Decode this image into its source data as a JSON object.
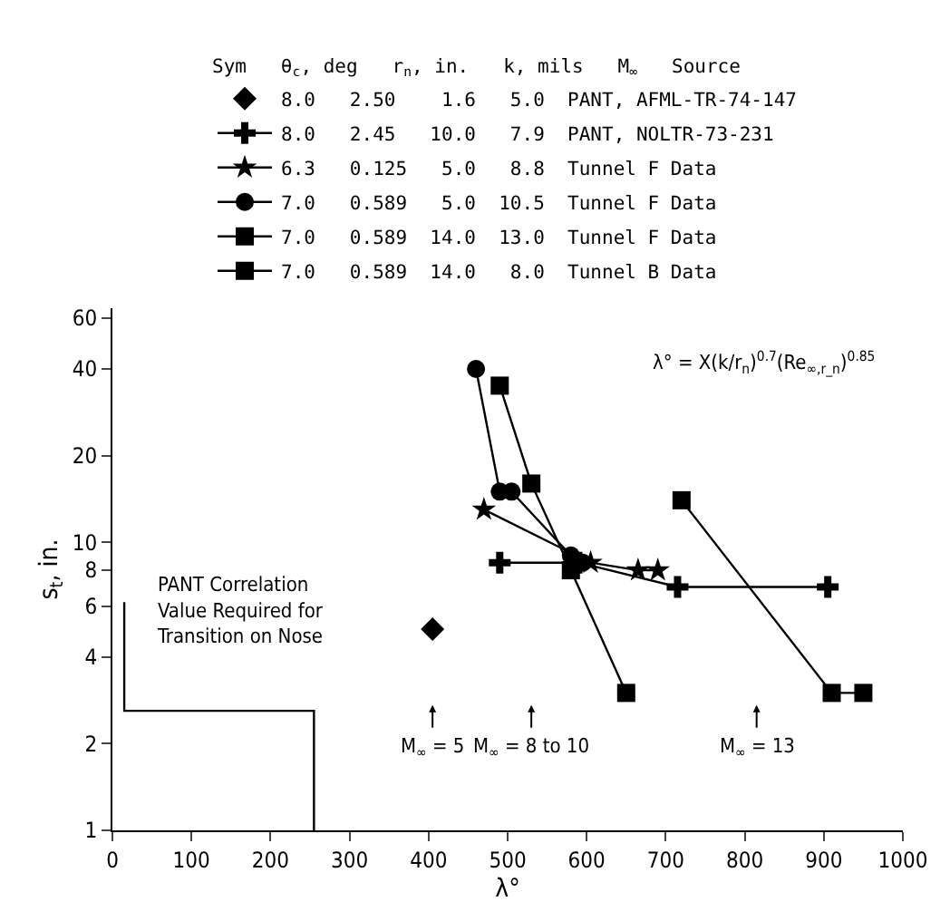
{
  "chart_data": {
    "type": "scatter",
    "xlabel": "λ°",
    "ylabel": "s$_{t}$, in.",
    "legend_title": "Sym   θ$_{c}$, deg   r$_{n}$, in.   k, mils   M$_{∞}$   Source",
    "series": [
      {
        "name": "8.0   2.50    1.6   5.0  PANT, AFML-TR-74-147",
        "color": "#000000",
        "marker": "diamond",
        "x": [
          405
        ],
        "values": [
          5
        ]
      },
      {
        "name": "8.0   2.45   10.0   7.9  PANT, NOLTR-73-231",
        "color": "#000000",
        "marker": "cross",
        "type": "line",
        "x": [
          490,
          590,
          715,
          905
        ],
        "values": [
          8.5,
          8.5,
          7,
          7
        ]
      },
      {
        "name": "6.3   0.125   5.0   8.8  Tunnel F Data",
        "color": "#000000",
        "marker": "star",
        "type": "line",
        "x": [
          470,
          605,
          665,
          690
        ],
        "values": [
          13,
          8.5,
          8,
          8
        ]
      },
      {
        "name": "7.0   0.589   5.0  10.5  Tunnel F Data",
        "color": "#000000",
        "marker": "circle",
        "type": "line",
        "x": [
          460,
          490,
          505,
          580,
          595
        ],
        "values": [
          40,
          15,
          15,
          9,
          8.5
        ]
      },
      {
        "name": "7.0   0.589  14.0  13.0  Tunnel F Data",
        "color": "#000000",
        "marker": "square",
        "type": "line",
        "x": [
          720,
          910,
          950
        ],
        "values": [
          14,
          3,
          3
        ]
      },
      {
        "name": "7.0   0.589  14.0   8.0  Tunnel B Data",
        "color": "#000000",
        "marker": "square",
        "type": "line",
        "x": [
          490,
          530,
          580,
          650
        ],
        "values": [
          35,
          16,
          8,
          3
        ]
      },
      {
        "color": "#000000",
        "marker": "none",
        "type": "line",
        "x": [
          15,
          15,
          255,
          255
        ],
        "values": [
          6.2,
          2.6,
          2.6,
          1
        ]
      }
    ],
    "annotations": [
      "λ° = X(k/r$_{n}$)$^{0.7}$(Re$_{∞,r_n}$)$^{0.85}$",
      "PANT Correlation Value Required for Transition on Nose",
      "M$_{∞}$ = 5",
      "M$_{∞}$ = 8 to 10",
      "M$_{∞}$ = 13"
    ],
    "xlim": [
      0,
      1000
    ],
    "xticks": [
      0,
      100,
      200,
      300,
      400,
      500,
      600,
      700,
      800,
      900,
      1000
    ],
    "ylim": [
      1,
      65
    ],
    "yticks": [
      1,
      2,
      4,
      6,
      8,
      10,
      20,
      40,
      60
    ],
    "log": "y",
    "legend": "top"
  }
}
